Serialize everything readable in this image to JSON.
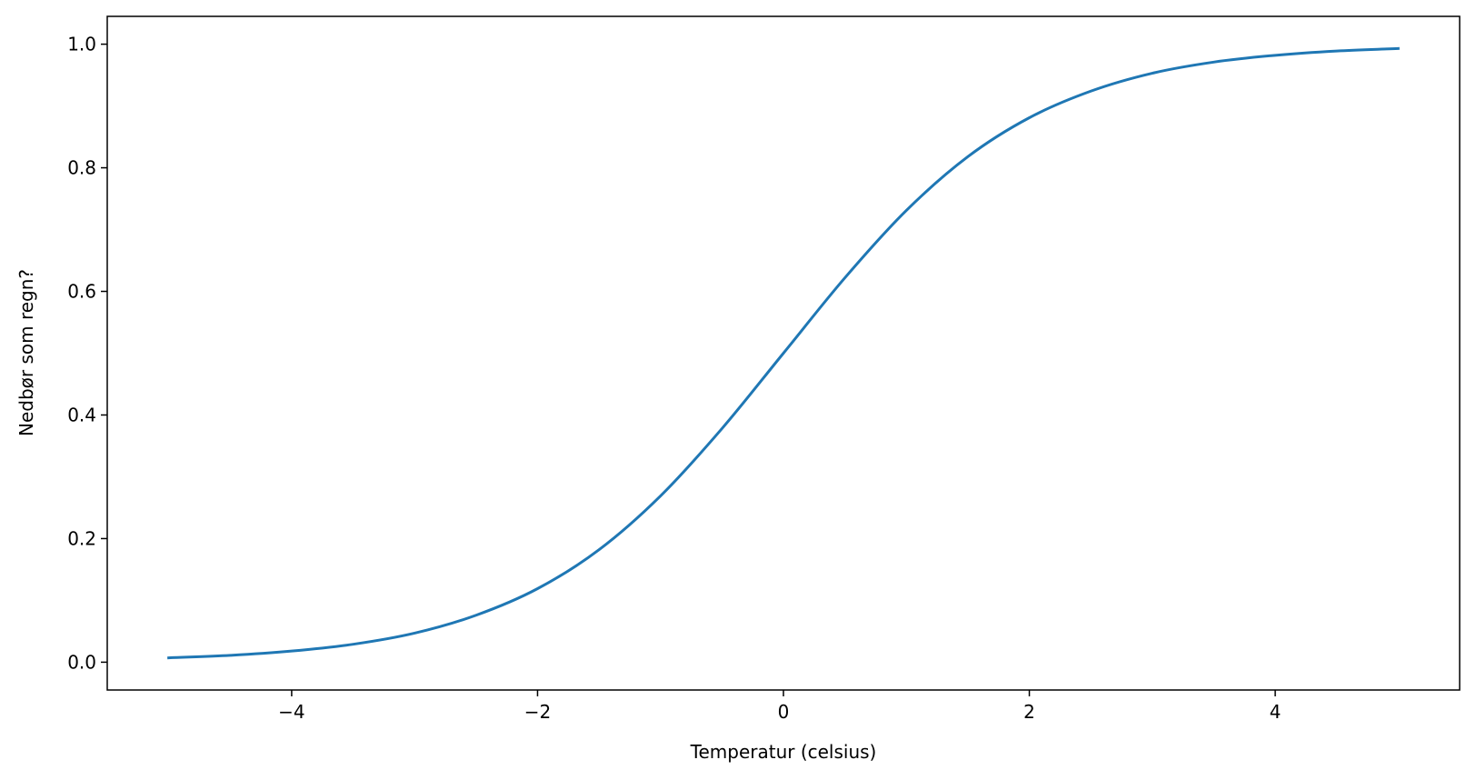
{
  "chart_data": {
    "type": "line",
    "title": "",
    "xlabel": "Temperatur (celsius)",
    "ylabel": "Nedbør som regn?",
    "xlim": [
      -5.5,
      5.5
    ],
    "ylim": [
      -0.045,
      1.045
    ],
    "grid": false,
    "x_ticks": [
      -4,
      -2,
      0,
      2,
      4
    ],
    "x_tick_labels": [
      "−4",
      "−2",
      "0",
      "2",
      "4"
    ],
    "y_ticks": [
      0.0,
      0.2,
      0.4,
      0.6,
      0.8,
      1.0
    ],
    "y_tick_labels": [
      "0.0",
      "0.2",
      "0.4",
      "0.6",
      "0.8",
      "1.0"
    ],
    "series": [
      {
        "color": "#1f77b4",
        "x": [
          -5,
          -4.5,
          -4,
          -3.5,
          -3,
          -2.5,
          -2,
          -1.5,
          -1,
          -0.5,
          0,
          0.5,
          1,
          1.5,
          2,
          2.5,
          3,
          3.5,
          4,
          4.5,
          5
        ],
        "y": [
          0.007,
          0.011,
          0.018,
          0.029,
          0.047,
          0.076,
          0.119,
          0.182,
          0.269,
          0.378,
          0.5,
          0.622,
          0.731,
          0.818,
          0.881,
          0.924,
          0.953,
          0.971,
          0.982,
          0.989,
          0.993
        ]
      }
    ]
  }
}
